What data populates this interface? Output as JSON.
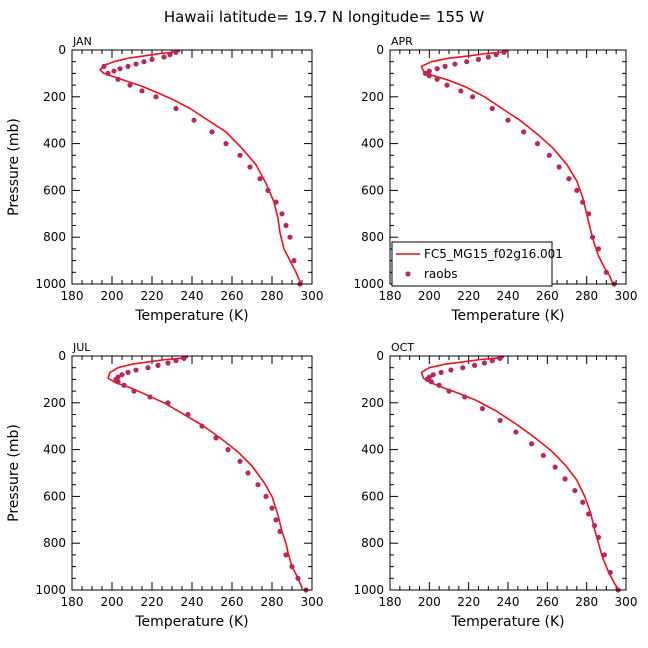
{
  "figure": {
    "title": "Hawaii   latitude= 19.7 N longitude= 155 W"
  },
  "colors": {
    "model_line": "#e8141c",
    "raobs_point": "#b8285c"
  },
  "chart_data": [
    {
      "type": "line",
      "panel_label": "JAN",
      "xlabel": "Temperature (K)",
      "ylabel": "Pressure (mb)",
      "xlim": [
        180,
        300
      ],
      "ylim": [
        1000,
        0
      ],
      "xticks": [
        180,
        200,
        220,
        240,
        260,
        280,
        300
      ],
      "yticks": [
        0,
        200,
        400,
        600,
        800,
        1000
      ],
      "series": [
        {
          "name": "FC5_MG15_f02g16.001",
          "style": "line",
          "x": [
            234,
            230,
            224,
            216,
            208,
            201,
            196,
            194,
            196,
            201,
            208,
            215,
            222,
            230,
            239,
            248,
            257,
            265,
            272,
            277,
            281,
            283,
            284,
            286,
            289,
            292,
            294
          ],
          "y": [
            5,
            10,
            15,
            25,
            35,
            50,
            65,
            85,
            100,
            115,
            135,
            155,
            180,
            210,
            250,
            300,
            350,
            420,
            490,
            570,
            650,
            720,
            780,
            850,
            900,
            950,
            990
          ]
        },
        {
          "name": "raobs",
          "style": "points",
          "x": [
            232,
            229,
            226,
            220,
            216,
            212,
            208,
            204,
            201,
            198,
            196,
            203,
            209,
            215,
            222,
            232,
            241,
            250,
            257,
            264,
            269,
            274,
            278,
            282,
            285,
            287,
            289,
            291,
            294
          ],
          "y": [
            10,
            20,
            30,
            40,
            50,
            60,
            70,
            80,
            90,
            100,
            70,
            125,
            150,
            175,
            200,
            250,
            300,
            350,
            400,
            450,
            500,
            550,
            600,
            650,
            700,
            750,
            800,
            900,
            1000
          ]
        }
      ]
    },
    {
      "type": "line",
      "panel_label": "APR",
      "xlabel": "Temperature (K)",
      "ylabel": "",
      "xlim": [
        180,
        300
      ],
      "ylim": [
        1000,
        0
      ],
      "xticks": [
        180,
        200,
        220,
        240,
        260,
        280,
        300
      ],
      "yticks": [
        0,
        200,
        400,
        600,
        800,
        1000
      ],
      "legend_position": "lower-left",
      "series": [
        {
          "name": "FC5_MG15_f02g16.001",
          "style": "line",
          "x": [
            240,
            236,
            229,
            220,
            210,
            201,
            196,
            197,
            202,
            210,
            219,
            228,
            237,
            246,
            255,
            263,
            270,
            275,
            278,
            280,
            282,
            284,
            286,
            289,
            292,
            293
          ],
          "y": [
            5,
            10,
            15,
            25,
            35,
            50,
            70,
            90,
            110,
            130,
            160,
            200,
            250,
            300,
            360,
            420,
            490,
            560,
            630,
            700,
            770,
            830,
            880,
            930,
            970,
            995
          ]
        },
        {
          "name": "raobs",
          "style": "points",
          "x": [
            238,
            234,
            230,
            225,
            219,
            213,
            208,
            204,
            200,
            198,
            200,
            204,
            209,
            216,
            222,
            232,
            240,
            248,
            255,
            261,
            266,
            271,
            275,
            278,
            281,
            283,
            286,
            290,
            294
          ],
          "y": [
            10,
            20,
            30,
            40,
            50,
            60,
            70,
            80,
            90,
            100,
            110,
            125,
            150,
            175,
            200,
            250,
            300,
            350,
            400,
            450,
            500,
            550,
            600,
            650,
            700,
            800,
            850,
            950,
            1000
          ]
        }
      ]
    },
    {
      "type": "line",
      "panel_label": "JUL",
      "xlabel": "Temperature (K)",
      "ylabel": "Pressure (mb)",
      "xlim": [
        180,
        300
      ],
      "ylim": [
        1000,
        0
      ],
      "xticks": [
        180,
        200,
        220,
        240,
        260,
        280,
        300
      ],
      "yticks": [
        0,
        200,
        400,
        600,
        800,
        1000
      ],
      "series": [
        {
          "name": "FC5_MG15_f02g16.001",
          "style": "line",
          "x": [
            238,
            234,
            227,
            218,
            210,
            203,
            199,
            198,
            202,
            209,
            217,
            226,
            235,
            245,
            254,
            263,
            270,
            276,
            280,
            283,
            285,
            287,
            288,
            290,
            293,
            295
          ],
          "y": [
            5,
            10,
            15,
            25,
            35,
            50,
            70,
            95,
            115,
            135,
            165,
            200,
            245,
            295,
            350,
            410,
            470,
            540,
            600,
            680,
            750,
            800,
            840,
            900,
            950,
            990
          ]
        },
        {
          "name": "raobs",
          "style": "points",
          "x": [
            236,
            232,
            228,
            223,
            218,
            212,
            208,
            205,
            203,
            202,
            203,
            206,
            211,
            219,
            228,
            238,
            245,
            252,
            258,
            264,
            268,
            273,
            277,
            280,
            282,
            284,
            287,
            290,
            293,
            297
          ],
          "y": [
            10,
            20,
            30,
            40,
            50,
            60,
            70,
            80,
            90,
            100,
            110,
            125,
            150,
            175,
            200,
            250,
            300,
            350,
            400,
            450,
            500,
            550,
            600,
            650,
            700,
            750,
            850,
            900,
            950,
            1000
          ]
        }
      ]
    },
    {
      "type": "line",
      "panel_label": "OCT",
      "xlabel": "Temperature (K)",
      "ylabel": "",
      "xlim": [
        180,
        300
      ],
      "ylim": [
        1000,
        0
      ],
      "xticks": [
        180,
        200,
        220,
        240,
        260,
        280,
        300
      ],
      "yticks": [
        0,
        200,
        400,
        600,
        800,
        1000
      ],
      "series": [
        {
          "name": "FC5_MG15_f02g16.001",
          "style": "line",
          "x": [
            238,
            233,
            226,
            217,
            208,
            200,
            196,
            197,
            201,
            207,
            215,
            224,
            234,
            244,
            253,
            262,
            269,
            275,
            279,
            282,
            284,
            286,
            288,
            291,
            294,
            296
          ],
          "y": [
            5,
            10,
            15,
            25,
            35,
            50,
            70,
            95,
            115,
            135,
            160,
            190,
            235,
            290,
            345,
            405,
            465,
            530,
            600,
            670,
            740,
            800,
            860,
            920,
            970,
            995
          ]
        },
        {
          "name": "raobs",
          "style": "points",
          "x": [
            236,
            232,
            228,
            223,
            217,
            211,
            206,
            202,
            200,
            199,
            201,
            205,
            210,
            218,
            227,
            236,
            244,
            252,
            258,
            264,
            269,
            274,
            278,
            281,
            284,
            286,
            289,
            292,
            296
          ],
          "y": [
            10,
            20,
            30,
            40,
            50,
            60,
            70,
            80,
            90,
            100,
            110,
            125,
            150,
            175,
            225,
            275,
            325,
            375,
            425,
            475,
            525,
            575,
            625,
            675,
            725,
            775,
            850,
            925,
            1000
          ]
        }
      ]
    }
  ]
}
